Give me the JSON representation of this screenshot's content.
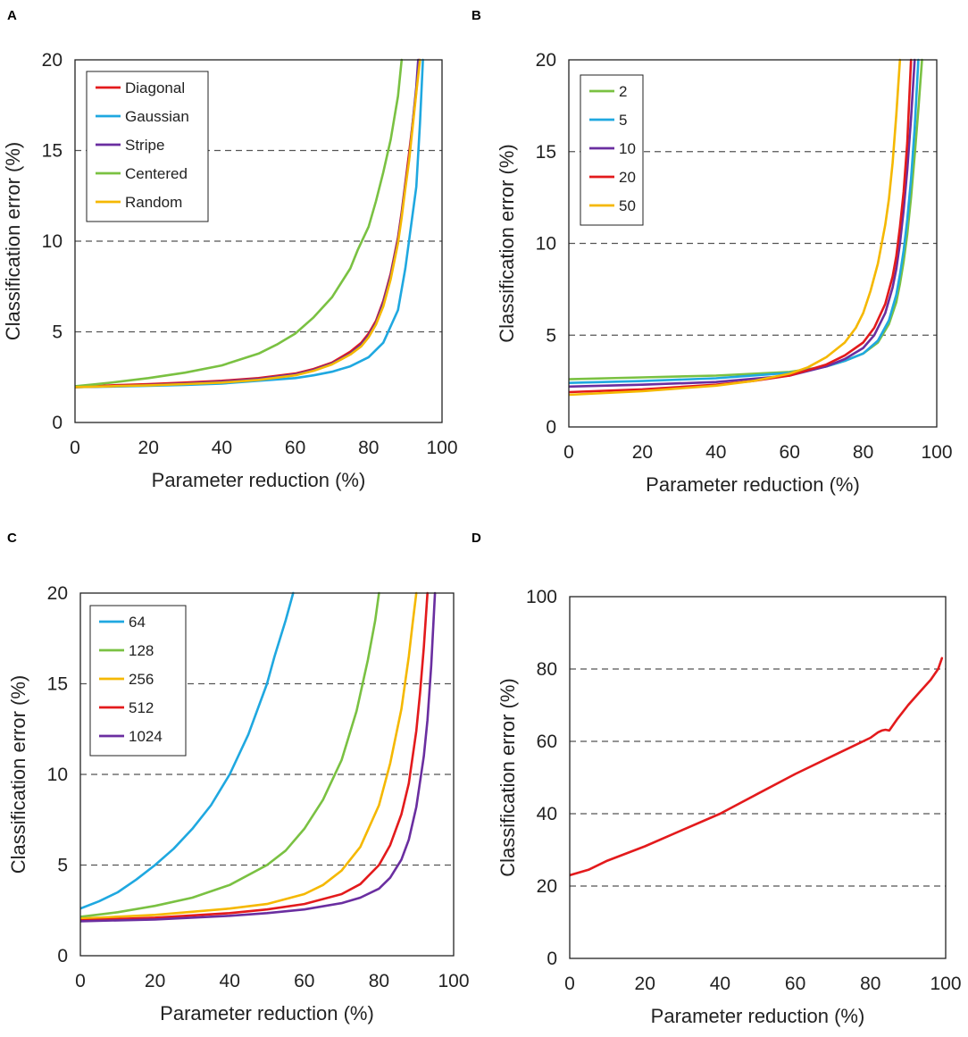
{
  "chart_data": [
    {
      "panel": "A",
      "type": "line",
      "xlabel": "Parameter reduction (%)",
      "ylabel": "Classification error (%)",
      "xlim": [
        0,
        100
      ],
      "ylim": [
        0,
        20
      ],
      "xticks": [
        0,
        20,
        40,
        60,
        80,
        100
      ],
      "yticks": [
        0,
        5,
        10,
        15,
        20
      ],
      "dashed_gridlines": [
        5,
        10,
        15
      ],
      "legend_position": "top-left",
      "series": [
        {
          "name": "Diagonal",
          "color": "#e31a1c",
          "x": [
            0,
            10,
            20,
            30,
            40,
            50,
            60,
            65,
            70,
            75,
            78,
            80,
            82,
            84,
            86,
            88,
            89,
            90,
            91,
            92,
            93,
            93.8
          ],
          "y": [
            1.95,
            2.05,
            2.12,
            2.2,
            2.3,
            2.45,
            2.7,
            2.95,
            3.3,
            3.9,
            4.4,
            4.9,
            5.6,
            6.7,
            8.2,
            10.2,
            11.6,
            13.2,
            14.8,
            16.5,
            18.3,
            20
          ]
        },
        {
          "name": "Gaussian",
          "color": "#1fa8e0",
          "x": [
            0,
            10,
            20,
            30,
            40,
            50,
            60,
            65,
            70,
            75,
            80,
            84,
            88,
            90,
            91,
            92,
            93,
            94,
            94.8
          ],
          "y": [
            1.95,
            1.98,
            2.02,
            2.07,
            2.15,
            2.3,
            2.45,
            2.6,
            2.8,
            3.1,
            3.6,
            4.4,
            6.2,
            8.5,
            10,
            11.5,
            13,
            16.5,
            20
          ]
        },
        {
          "name": "Stripe",
          "color": "#6a2ea0",
          "x": [
            0,
            10,
            20,
            30,
            40,
            50,
            60,
            65,
            70,
            75,
            78,
            80,
            82,
            84,
            86,
            88,
            89,
            90,
            91,
            92,
            93,
            93.5
          ],
          "y": [
            1.95,
            2.0,
            2.07,
            2.15,
            2.25,
            2.4,
            2.65,
            2.9,
            3.25,
            3.8,
            4.3,
            4.8,
            5.5,
            6.6,
            8.1,
            10.1,
            11.5,
            13.1,
            14.5,
            16.5,
            18.5,
            20
          ]
        },
        {
          "name": "Centered",
          "color": "#7ac142",
          "x": [
            0,
            5,
            10,
            20,
            30,
            40,
            50,
            55,
            60,
            65,
            70,
            75,
            77,
            80,
            82,
            84,
            86,
            88,
            89
          ],
          "y": [
            2.0,
            2.1,
            2.2,
            2.45,
            2.75,
            3.15,
            3.8,
            4.3,
            4.9,
            5.8,
            6.9,
            8.5,
            9.5,
            10.8,
            12.2,
            13.8,
            15.6,
            18.0,
            20
          ]
        },
        {
          "name": "Random",
          "color": "#f5b800",
          "x": [
            0,
            10,
            20,
            30,
            40,
            50,
            60,
            65,
            70,
            75,
            78,
            80,
            82,
            84,
            86,
            88,
            89,
            90,
            91,
            92,
            93,
            94
          ],
          "y": [
            1.95,
            2.0,
            2.05,
            2.12,
            2.2,
            2.35,
            2.6,
            2.85,
            3.2,
            3.75,
            4.2,
            4.7,
            5.4,
            6.4,
            7.9,
            9.9,
            11.3,
            12.9,
            14.4,
            16.3,
            18.2,
            20
          ]
        }
      ]
    },
    {
      "panel": "B",
      "type": "line",
      "xlabel": "Parameter reduction (%)",
      "ylabel": "Classification error (%)",
      "xlim": [
        0,
        100
      ],
      "ylim": [
        0,
        20
      ],
      "xticks": [
        0,
        20,
        40,
        60,
        80,
        100
      ],
      "yticks": [
        0,
        5,
        10,
        15,
        20
      ],
      "dashed_gridlines": [
        5,
        10,
        15
      ],
      "legend_position": "top-left",
      "series": [
        {
          "name": "2",
          "color": "#7ac142",
          "x": [
            0,
            20,
            40,
            60,
            70,
            75,
            80,
            84,
            87,
            89,
            90,
            91,
            92,
            93,
            94,
            95,
            96
          ],
          "y": [
            2.6,
            2.7,
            2.8,
            3.0,
            3.3,
            3.6,
            4.0,
            4.6,
            5.6,
            6.8,
            7.8,
            9.0,
            10.5,
            12.5,
            14.8,
            17.3,
            20
          ]
        },
        {
          "name": "5",
          "color": "#1fa8e0",
          "x": [
            0,
            20,
            40,
            60,
            70,
            75,
            80,
            84,
            87,
            89,
            90,
            91,
            92,
            93,
            94,
            95
          ],
          "y": [
            2.4,
            2.5,
            2.65,
            2.95,
            3.3,
            3.6,
            4.0,
            4.7,
            5.8,
            7.2,
            8.3,
            9.6,
            11.3,
            13.5,
            16.3,
            20
          ]
        },
        {
          "name": "10",
          "color": "#6a2ea0",
          "x": [
            0,
            20,
            40,
            60,
            70,
            75,
            80,
            83,
            86,
            88,
            89,
            90,
            91,
            92,
            93,
            94
          ],
          "y": [
            2.2,
            2.3,
            2.45,
            2.8,
            3.3,
            3.7,
            4.3,
            5.0,
            6.2,
            7.6,
            8.6,
            10.0,
            11.8,
            14.0,
            16.8,
            20
          ]
        },
        {
          "name": "20",
          "color": "#e31a1c",
          "x": [
            0,
            20,
            40,
            50,
            60,
            70,
            75,
            80,
            83,
            86,
            88,
            89,
            90,
            91,
            92,
            93
          ],
          "y": [
            1.9,
            2.05,
            2.3,
            2.5,
            2.8,
            3.4,
            3.9,
            4.6,
            5.4,
            6.7,
            8.2,
            9.3,
            10.9,
            12.8,
            15.5,
            20
          ]
        },
        {
          "name": "50",
          "color": "#f5b800",
          "x": [
            0,
            20,
            40,
            50,
            60,
            65,
            70,
            75,
            78,
            80,
            82,
            84,
            86,
            87,
            88,
            89,
            90
          ],
          "y": [
            1.75,
            1.95,
            2.25,
            2.5,
            2.9,
            3.25,
            3.8,
            4.6,
            5.4,
            6.2,
            7.4,
            8.9,
            11.0,
            12.4,
            14.4,
            17.0,
            20
          ]
        }
      ]
    },
    {
      "panel": "C",
      "type": "line",
      "xlabel": "Parameter reduction (%)",
      "ylabel": "Classification error (%)",
      "xlim": [
        0,
        100
      ],
      "ylim": [
        0,
        20
      ],
      "xticks": [
        0,
        20,
        40,
        60,
        80,
        100
      ],
      "yticks": [
        0,
        5,
        10,
        15,
        20
      ],
      "dashed_gridlines": [
        5,
        10,
        15
      ],
      "legend_position": "top-left",
      "series": [
        {
          "name": "64",
          "color": "#1fa8e0",
          "x": [
            0,
            5,
            10,
            15,
            20,
            25,
            30,
            35,
            40,
            45,
            50,
            52,
            55,
            57
          ],
          "y": [
            2.6,
            3.0,
            3.5,
            4.2,
            5.0,
            5.9,
            7.0,
            8.3,
            10.0,
            12.2,
            15.0,
            16.5,
            18.5,
            20
          ]
        },
        {
          "name": "128",
          "color": "#7ac142",
          "x": [
            0,
            10,
            20,
            30,
            40,
            50,
            55,
            60,
            65,
            70,
            74,
            77,
            79,
            80
          ],
          "y": [
            2.15,
            2.4,
            2.75,
            3.2,
            3.9,
            5.0,
            5.8,
            7.0,
            8.6,
            10.8,
            13.5,
            16.3,
            18.5,
            20
          ]
        },
        {
          "name": "256",
          "color": "#f5b800",
          "x": [
            0,
            20,
            40,
            50,
            60,
            65,
            70,
            75,
            80,
            83,
            86,
            88,
            89,
            90
          ],
          "y": [
            2.05,
            2.25,
            2.6,
            2.85,
            3.4,
            3.9,
            4.7,
            6.0,
            8.3,
            10.6,
            13.6,
            16.5,
            18.3,
            20
          ]
        },
        {
          "name": "512",
          "color": "#e31a1c",
          "x": [
            0,
            20,
            40,
            50,
            60,
            70,
            75,
            80,
            83,
            86,
            88,
            90,
            91,
            92,
            93
          ],
          "y": [
            1.95,
            2.1,
            2.35,
            2.55,
            2.85,
            3.4,
            3.95,
            5.0,
            6.1,
            7.8,
            9.5,
            12.4,
            14.5,
            17.0,
            20
          ]
        },
        {
          "name": "1024",
          "color": "#6a2ea0",
          "x": [
            0,
            20,
            40,
            50,
            60,
            70,
            75,
            80,
            83,
            86,
            88,
            90,
            92,
            93,
            94,
            95
          ],
          "y": [
            1.9,
            2.0,
            2.2,
            2.35,
            2.55,
            2.9,
            3.2,
            3.7,
            4.3,
            5.3,
            6.4,
            8.2,
            11.0,
            13.0,
            16.0,
            20
          ]
        }
      ]
    },
    {
      "panel": "D",
      "type": "line",
      "xlabel": "Parameter reduction (%)",
      "ylabel": "Classification error (%)",
      "xlim": [
        0,
        100
      ],
      "ylim": [
        0,
        100
      ],
      "xticks": [
        0,
        20,
        40,
        60,
        80,
        100
      ],
      "yticks": [
        0,
        20,
        40,
        60,
        80,
        100
      ],
      "dashed_gridlines": [
        20,
        40,
        60,
        80
      ],
      "legend_position": "none",
      "series": [
        {
          "name": "",
          "color": "#e31a1c",
          "x": [
            0,
            5,
            10,
            20,
            30,
            40,
            50,
            60,
            70,
            75,
            80,
            82,
            83,
            84,
            85,
            87,
            90,
            93,
            96,
            98,
            99
          ],
          "y": [
            23,
            24.5,
            27,
            31,
            35.5,
            40,
            45.5,
            51,
            56,
            58.5,
            61,
            62.5,
            63,
            63.2,
            63,
            66,
            70,
            73.5,
            77,
            80,
            83
          ]
        }
      ]
    }
  ]
}
